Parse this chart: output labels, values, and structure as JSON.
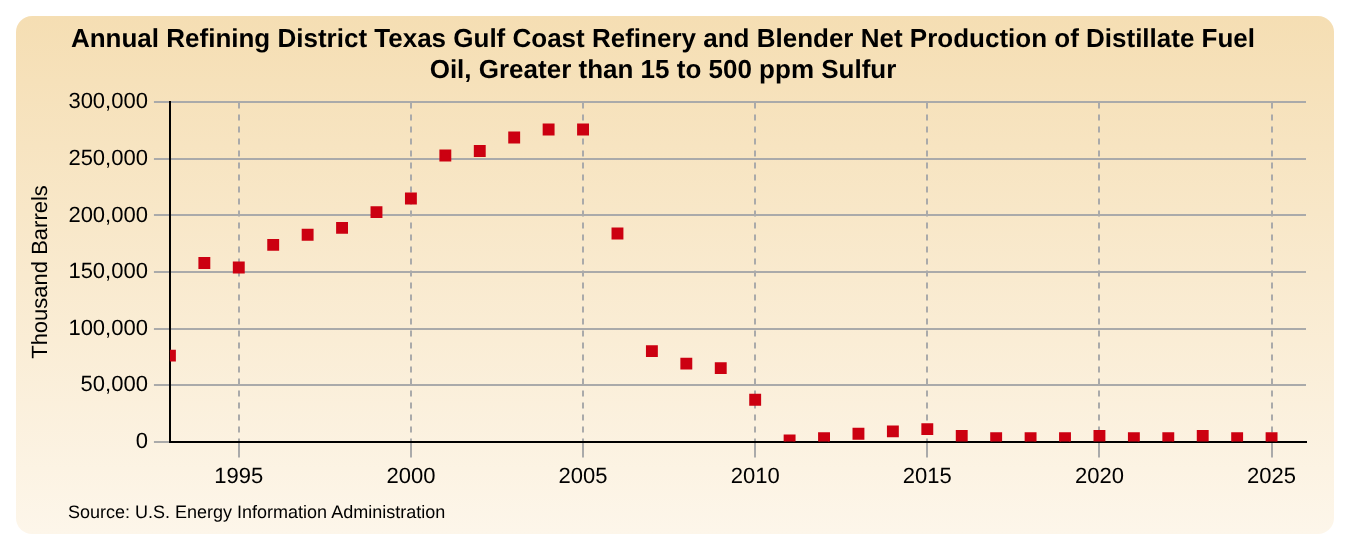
{
  "chart_data": {
    "type": "scatter",
    "title": "Annual Refining District Texas Gulf Coast Refinery and Blender Net Production of Distillate Fuel Oil, Greater than 15 to 500 ppm Sulfur",
    "ylabel": "Thousand Barrels",
    "annotations": [
      "Source: U.S. Energy Information Administration"
    ],
    "x": [
      1993,
      1994,
      1995,
      1996,
      1997,
      1998,
      1999,
      2000,
      2001,
      2002,
      2003,
      2004,
      2005,
      2006,
      2007,
      2008,
      2009,
      2010,
      2011,
      2012,
      2013,
      2014,
      2015,
      2016,
      2017,
      2018,
      2019,
      2020,
      2021,
      2022,
      2023,
      2024,
      2025
    ],
    "series": [
      {
        "color": "#cc0011",
        "values": [
          76000,
          158000,
          154000,
          174000,
          183000,
          189000,
          203000,
          215000,
          253000,
          257000,
          269000,
          276000,
          276000,
          184000,
          80000,
          69000,
          65000,
          37000,
          1000,
          3000,
          7000,
          9000,
          11000,
          5000,
          3000,
          3000,
          3000,
          5000,
          3000,
          3000,
          5000,
          3000,
          3000
        ]
      }
    ],
    "xlim": [
      1993,
      2026
    ],
    "xticks": [
      1995,
      2000,
      2005,
      2010,
      2015,
      2020,
      2025
    ],
    "ylim": [
      0,
      300000
    ],
    "yticks": [
      0,
      {
        "value": 50000,
        "label": "50,000"
      },
      {
        "value": 100000,
        "label": "100,000"
      },
      {
        "value": 150000,
        "label": "150,000"
      },
      {
        "value": 200000,
        "label": "200,000"
      },
      {
        "value": 250000,
        "label": "250,000"
      },
      {
        "value": 300000,
        "label": "300,000"
      }
    ],
    "grid": true,
    "marker": "square",
    "legend": false
  }
}
